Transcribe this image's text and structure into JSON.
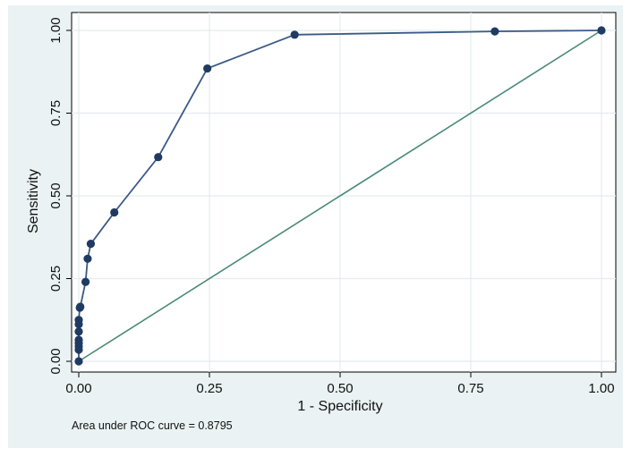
{
  "chart_data": {
    "type": "line",
    "xlabel": "1 - Specificity",
    "ylabel": "Sensitivity",
    "xlim": [
      0,
      1
    ],
    "ylim": [
      0,
      1
    ],
    "x_ticks": [
      0,
      0.25,
      0.5,
      0.75,
      1
    ],
    "x_tick_labels": [
      "0.00",
      "0.25",
      "0.50",
      "0.75",
      "1.00"
    ],
    "y_ticks": [
      0,
      0.25,
      0.5,
      0.75,
      1
    ],
    "y_tick_labels": [
      "0.00",
      "0.25",
      "0.50",
      "0.75",
      "1.00"
    ],
    "grid": true,
    "annotation": "Area under ROC curve = 0.8795",
    "colors": {
      "curve": "#3a5a86",
      "markers": "#1f3b63",
      "reference": "#4a8a78",
      "background": "#eaf2f3",
      "plot_area": "#ffffff"
    },
    "series": [
      {
        "x": [
          0,
          0,
          0,
          0,
          0,
          0,
          0,
          0,
          0.002,
          0.003,
          0.013,
          0.017,
          0.023,
          0.068,
          0.152,
          0.246,
          0.413,
          0.796,
          1
        ],
        "y": [
          0,
          0.035,
          0.045,
          0.055,
          0.065,
          0.09,
          0.112,
          0.125,
          0.162,
          0.165,
          0.24,
          0.31,
          0.355,
          0.45,
          0.617,
          0.885,
          0.987,
          0.997,
          1
        ]
      },
      {
        "x": [
          0,
          1
        ],
        "y": [
          0,
          1
        ]
      }
    ]
  }
}
